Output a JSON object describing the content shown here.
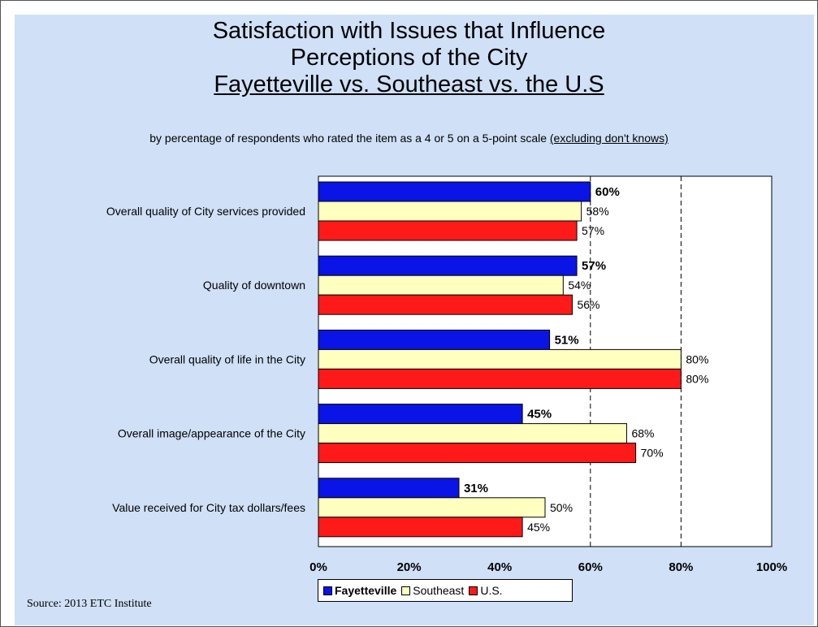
{
  "title": {
    "line1": "Satisfaction with Issues that Influence",
    "line2": "Perceptions of the City",
    "line3": "Fayetteville vs. Southeast vs. the U.S"
  },
  "subtitle": {
    "text": "by percentage of respondents who rated the item as a 4 or 5 on a 5-point scale",
    "note": "(excluding don't knows)"
  },
  "source": "Source:  2013 ETC Institute",
  "colors": {
    "fayetteville": "#0a14e6",
    "southeast": "#ffffc0",
    "us": "#ff1a1a",
    "panel": "#cfe0f7"
  },
  "chart_data": {
    "type": "bar",
    "orientation": "horizontal",
    "categories": [
      "Overall quality of City services provided",
      "Quality of downtown",
      "Overall quality of life in the City",
      "Overall image/appearance of the City",
      "Value received for City tax dollars/fees"
    ],
    "series": [
      {
        "name": "Fayetteville",
        "values": [
          60,
          57,
          51,
          45,
          31
        ],
        "labels": [
          "60%",
          "57%",
          "51%",
          "45%",
          "31%"
        ],
        "bold": true
      },
      {
        "name": "Southeast",
        "values": [
          58,
          54,
          80,
          68,
          50
        ],
        "labels": [
          "58%",
          "54%",
          "80%",
          "68%",
          "50%"
        ]
      },
      {
        "name": "U.S.",
        "values": [
          57,
          56,
          80,
          70,
          45
        ],
        "labels": [
          "57%",
          "56%",
          "80%",
          "70%",
          "45%"
        ]
      }
    ],
    "xlim": [
      0,
      100
    ],
    "xticks": [
      "0%",
      "20%",
      "40%",
      "60%",
      "80%",
      "100%"
    ],
    "gridlines": [
      60,
      80
    ],
    "grid_style": "dashed",
    "legend": "bottom"
  }
}
